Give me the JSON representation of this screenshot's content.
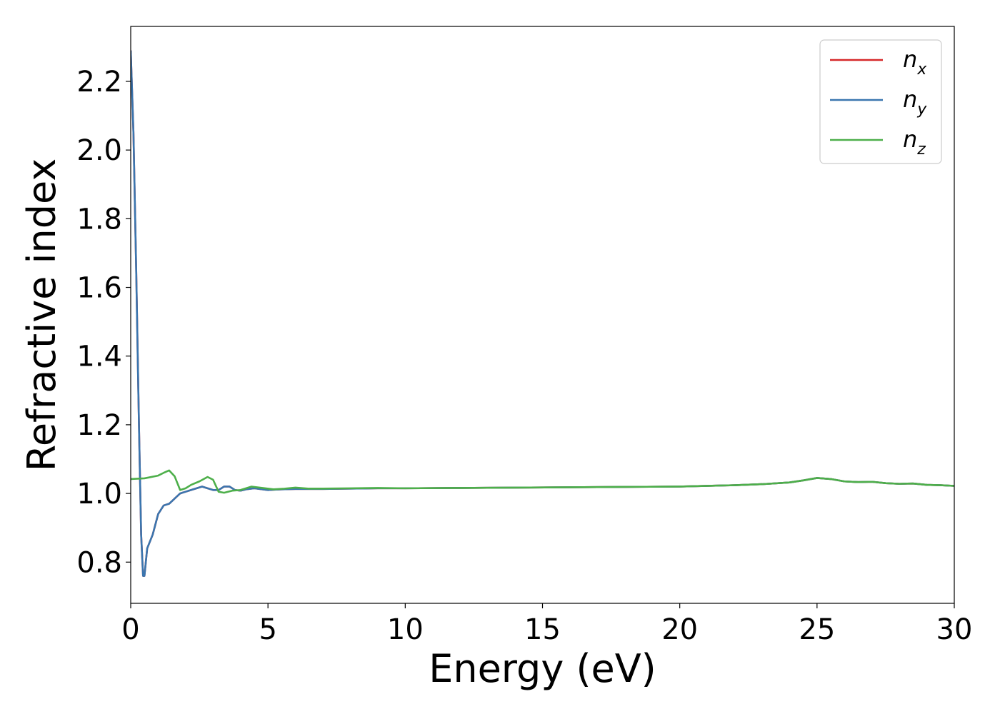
{
  "chart_data": {
    "type": "line",
    "title": "",
    "xlabel": "Energy (eV)",
    "ylabel": "Refractive index",
    "xlim": [
      0,
      30
    ],
    "ylim": [
      0.68,
      2.36
    ],
    "xticks": [
      0,
      5,
      10,
      15,
      20,
      25,
      30
    ],
    "yticks": [
      0.8,
      1.0,
      1.2,
      1.4,
      1.6,
      1.8,
      2.0,
      2.2
    ],
    "grid": false,
    "legend_position": "top-right",
    "series": [
      {
        "name": "n_x",
        "label_base": "n",
        "label_sub": "x",
        "color": "#d62728",
        "x": [
          0.0,
          0.1,
          0.2,
          0.3,
          0.38,
          0.45,
          0.5,
          0.55,
          0.6,
          0.7,
          0.8,
          0.9,
          1.0,
          1.2,
          1.4,
          1.6,
          1.8,
          2.0,
          2.2,
          2.4,
          2.6,
          2.8,
          3.0,
          3.2,
          3.4,
          3.6,
          3.8,
          4.0,
          4.2,
          4.5,
          5.0,
          5.5,
          6.0,
          7.0,
          8.0,
          9.0,
          10.0,
          12.0,
          14.0,
          16.0,
          18.0,
          20.0,
          22.0,
          23.0,
          24.0,
          24.5,
          25.0,
          25.5,
          26.0,
          26.5,
          27.0,
          27.5,
          28.0,
          28.5,
          29.0,
          29.5,
          30.0
        ],
        "y": [
          2.29,
          2.05,
          1.65,
          1.2,
          0.88,
          0.76,
          0.76,
          0.8,
          0.84,
          0.86,
          0.88,
          0.91,
          0.94,
          0.965,
          0.97,
          0.985,
          1.0,
          1.005,
          1.01,
          1.015,
          1.02,
          1.015,
          1.01,
          1.01,
          1.02,
          1.02,
          1.01,
          1.008,
          1.012,
          1.015,
          1.01,
          1.012,
          1.013,
          1.013,
          1.014,
          1.015,
          1.015,
          1.016,
          1.017,
          1.018,
          1.019,
          1.02,
          1.024,
          1.027,
          1.032,
          1.038,
          1.045,
          1.042,
          1.035,
          1.033,
          1.034,
          1.03,
          1.028,
          1.029,
          1.025,
          1.024,
          1.022
        ]
      },
      {
        "name": "n_y",
        "label_base": "n",
        "label_sub": "y",
        "color": "#3a76af",
        "x": [
          0.0,
          0.1,
          0.2,
          0.3,
          0.38,
          0.45,
          0.5,
          0.55,
          0.6,
          0.7,
          0.8,
          0.9,
          1.0,
          1.2,
          1.4,
          1.6,
          1.8,
          2.0,
          2.2,
          2.4,
          2.6,
          2.8,
          3.0,
          3.2,
          3.4,
          3.6,
          3.8,
          4.0,
          4.2,
          4.5,
          5.0,
          5.5,
          6.0,
          7.0,
          8.0,
          9.0,
          10.0,
          12.0,
          14.0,
          16.0,
          18.0,
          20.0,
          22.0,
          23.0,
          24.0,
          24.5,
          25.0,
          25.5,
          26.0,
          26.5,
          27.0,
          27.5,
          28.0,
          28.5,
          29.0,
          29.5,
          30.0
        ],
        "y": [
          2.29,
          2.05,
          1.65,
          1.2,
          0.88,
          0.76,
          0.76,
          0.8,
          0.84,
          0.86,
          0.88,
          0.91,
          0.94,
          0.965,
          0.97,
          0.985,
          1.0,
          1.005,
          1.01,
          1.015,
          1.02,
          1.015,
          1.01,
          1.01,
          1.02,
          1.02,
          1.01,
          1.008,
          1.012,
          1.015,
          1.01,
          1.012,
          1.013,
          1.013,
          1.014,
          1.015,
          1.015,
          1.016,
          1.017,
          1.018,
          1.019,
          1.02,
          1.024,
          1.027,
          1.032,
          1.038,
          1.045,
          1.042,
          1.035,
          1.033,
          1.034,
          1.03,
          1.028,
          1.029,
          1.025,
          1.024,
          1.022
        ]
      },
      {
        "name": "n_z",
        "label_base": "n",
        "label_sub": "z",
        "color": "#4daf4a",
        "x": [
          0.0,
          0.5,
          1.0,
          1.2,
          1.4,
          1.6,
          1.8,
          2.0,
          2.2,
          2.5,
          2.8,
          3.0,
          3.2,
          3.4,
          3.7,
          4.0,
          4.4,
          4.8,
          5.2,
          5.6,
          6.0,
          6.5,
          7.0,
          8.0,
          9.0,
          10.0,
          12.0,
          14.0,
          16.0,
          18.0,
          20.0,
          22.0,
          23.0,
          24.0,
          24.5,
          25.0,
          25.5,
          26.0,
          26.5,
          27.0,
          27.5,
          28.0,
          28.5,
          29.0,
          29.5,
          30.0
        ],
        "y": [
          1.042,
          1.044,
          1.052,
          1.06,
          1.067,
          1.05,
          1.01,
          1.015,
          1.025,
          1.035,
          1.048,
          1.04,
          1.005,
          1.002,
          1.008,
          1.01,
          1.02,
          1.016,
          1.012,
          1.014,
          1.017,
          1.014,
          1.014,
          1.015,
          1.016,
          1.015,
          1.016,
          1.017,
          1.018,
          1.019,
          1.02,
          1.024,
          1.027,
          1.032,
          1.038,
          1.045,
          1.042,
          1.035,
          1.033,
          1.034,
          1.03,
          1.028,
          1.029,
          1.025,
          1.024,
          1.022
        ]
      }
    ]
  }
}
